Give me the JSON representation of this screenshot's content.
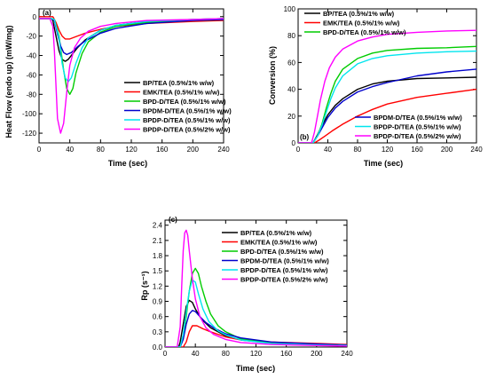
{
  "figure": {
    "panels": [
      {
        "tag": "(a)",
        "xlabel": "Time (sec)",
        "ylabel": "Heat Flow (endo up) (mW/mg)",
        "xlim": [
          0,
          240
        ],
        "ylim": [
          -130,
          8
        ],
        "xticks": [
          "0",
          "40",
          "80",
          "120",
          "160",
          "200",
          "240"
        ],
        "yticks": [
          "0",
          "-20",
          "-40",
          "-60",
          "-80",
          "-100",
          "-120"
        ]
      },
      {
        "tag": "(b)",
        "xlabel": "Time (sec)",
        "ylabel": "Conversion (%)",
        "xlim": [
          0,
          240
        ],
        "ylim": [
          0,
          100
        ],
        "xticks": [
          "0",
          "40",
          "80",
          "120",
          "160",
          "200",
          "240"
        ],
        "yticks": [
          "0",
          "20",
          "40",
          "60",
          "80",
          "100"
        ]
      },
      {
        "tag": "(c)",
        "xlabel": "Time (sec)",
        "ylabel": "Rp (s⁻¹)",
        "xlim": [
          0,
          240
        ],
        "ylim": [
          0,
          2.5
        ],
        "xticks": [
          "0",
          "40",
          "80",
          "120",
          "160",
          "200",
          "240"
        ],
        "yticks": [
          "0.0",
          "0.3",
          "0.6",
          "0.9",
          "1.2",
          "1.5",
          "1.8",
          "2.1",
          "2.4"
        ]
      }
    ]
  },
  "chart_data": [
    {
      "type": "line",
      "panel": "(a)",
      "title": "",
      "xlabel": "Time (sec)",
      "ylabel": "Heat Flow (endo up) (mW/mg)",
      "xlim": [
        0,
        240
      ],
      "ylim": [
        -130,
        8
      ],
      "legend_position": "right-center",
      "series": [
        {
          "name": "BP/TEA (0.5%/1% w/w)",
          "color": "#000000",
          "x": [
            0,
            16,
            18,
            22,
            26,
            30,
            34,
            38,
            44,
            50,
            60,
            80,
            100,
            140,
            200,
            240
          ],
          "y": [
            -2,
            -2,
            -4,
            -20,
            -35,
            -44,
            -46,
            -44,
            -38,
            -32,
            -24,
            -14,
            -9,
            -5,
            -3,
            -2
          ]
        },
        {
          "name": "EMK/TEA (0.5%/1% w/w)",
          "color": "#ff0000",
          "x": [
            0,
            18,
            22,
            26,
            30,
            34,
            40,
            50,
            60,
            80,
            100,
            140,
            200,
            240
          ],
          "y": [
            0,
            0,
            -6,
            -14,
            -20,
            -23,
            -23,
            -20,
            -17,
            -13,
            -10,
            -7,
            -5,
            -4
          ]
        },
        {
          "name": "BPD-D/TEA (0.5%/1% w/w)",
          "color": "#00cc00",
          "x": [
            0,
            16,
            20,
            26,
            32,
            36,
            40,
            44,
            48,
            56,
            64,
            80,
            100,
            140,
            200,
            240
          ],
          "y": [
            -2,
            -2,
            -3,
            -20,
            -55,
            -74,
            -80,
            -74,
            -58,
            -38,
            -26,
            -16,
            -10,
            -6,
            -4,
            -3
          ]
        },
        {
          "name": "BPDM-D/TEA (0.5%/1% w/w)",
          "color": "#0000cc",
          "x": [
            0,
            16,
            20,
            24,
            28,
            32,
            36,
            42,
            50,
            60,
            80,
            100,
            140,
            200,
            240
          ],
          "y": [
            -2,
            -2,
            -4,
            -18,
            -30,
            -37,
            -39,
            -37,
            -31,
            -25,
            -17,
            -12,
            -7,
            -4,
            -3
          ]
        },
        {
          "name": "BPDP-D/TEA (0.5%/1% w/w)",
          "color": "#00e5ee",
          "x": [
            0,
            16,
            20,
            26,
            30,
            34,
            38,
            42,
            48,
            56,
            64,
            80,
            100,
            140,
            200,
            240
          ],
          "y": [
            -2,
            -2,
            -3,
            -22,
            -48,
            -63,
            -67,
            -63,
            -48,
            -32,
            -22,
            -14,
            -9,
            -5,
            -3,
            -2
          ]
        },
        {
          "name": "BPDP-D/TEA (0.5%/2% w/w)",
          "color": "#ff00ff",
          "x": [
            0,
            14,
            18,
            20,
            24,
            28,
            32,
            36,
            40,
            46,
            54,
            64,
            80,
            100,
            140,
            200,
            240
          ],
          "y": [
            -2,
            -2,
            -10,
            -35,
            -105,
            -120,
            -110,
            -78,
            -50,
            -32,
            -22,
            -15,
            -10,
            -7,
            -4,
            -3,
            -2
          ]
        }
      ]
    },
    {
      "type": "line",
      "panel": "(b)",
      "title": "",
      "xlabel": "Time (sec)",
      "ylabel": "Conversion (%)",
      "xlim": [
        0,
        240
      ],
      "ylim": [
        0,
        100
      ],
      "legend_position": "top-left (first three) and bottom-right (last three)",
      "series": [
        {
          "name": "BP/TEA (0.5%/1% w/w)",
          "color": "#000000",
          "x": [
            0,
            20,
            26,
            32,
            40,
            50,
            60,
            80,
            100,
            120,
            160,
            200,
            240
          ],
          "y": [
            0,
            0,
            6,
            13,
            21,
            28,
            33,
            40,
            44,
            46,
            48,
            48.5,
            49
          ]
        },
        {
          "name": "EMK/TEA (0.5%/1% w/w)",
          "color": "#ff0000",
          "x": [
            0,
            22,
            28,
            36,
            46,
            60,
            80,
            100,
            120,
            160,
            200,
            240
          ],
          "y": [
            0,
            0,
            2,
            5,
            9,
            14,
            20,
            25,
            29,
            34,
            37,
            40
          ]
        },
        {
          "name": "BPD-D/TEA (0.5%/1% w/w)",
          "color": "#00cc00",
          "x": [
            0,
            20,
            26,
            32,
            38,
            44,
            50,
            60,
            80,
            100,
            120,
            160,
            200,
            240
          ],
          "y": [
            0,
            0,
            5,
            14,
            26,
            37,
            46,
            55,
            63,
            67,
            69,
            70.5,
            71,
            72
          ]
        },
        {
          "name": "BPDM-D/TEA (0.5%/1% w/w)",
          "color": "#0000cc",
          "x": [
            0,
            20,
            26,
            32,
            40,
            50,
            60,
            80,
            100,
            120,
            160,
            200,
            240
          ],
          "y": [
            0,
            0,
            5,
            11,
            19,
            26,
            31,
            38,
            42,
            45,
            50,
            53,
            55
          ]
        },
        {
          "name": "BPDP-D/TEA (0.5%/1% w/w)",
          "color": "#00e5ee",
          "x": [
            0,
            20,
            26,
            32,
            38,
            44,
            50,
            60,
            80,
            100,
            120,
            160,
            200,
            240
          ],
          "y": [
            0,
            0,
            5,
            13,
            23,
            33,
            41,
            50,
            59,
            63,
            65,
            67,
            68,
            68.5
          ]
        },
        {
          "name": "BPDP-D/TEA (0.5%/2% w/w)",
          "color": "#ff00ff",
          "x": [
            0,
            18,
            22,
            26,
            30,
            36,
            42,
            50,
            60,
            80,
            100,
            120,
            160,
            200,
            240
          ],
          "y": [
            0,
            0,
            8,
            20,
            32,
            46,
            56,
            64,
            70,
            76,
            79,
            81,
            82.5,
            83.5,
            84
          ]
        }
      ]
    },
    {
      "type": "line",
      "panel": "(c)",
      "title": "",
      "xlabel": "Time (sec)",
      "ylabel": "Rp (s⁻¹)",
      "xlim": [
        0,
        240
      ],
      "ylim": [
        0,
        2.5
      ],
      "legend_position": "top-right",
      "series": [
        {
          "name": "BP/TEA (0.5%/1% w/w)",
          "color": "#000000",
          "x": [
            0,
            18,
            20,
            24,
            28,
            32,
            36,
            40,
            48,
            60,
            80,
            100,
            140,
            200,
            240
          ],
          "y": [
            0,
            0,
            0.1,
            0.45,
            0.8,
            0.92,
            0.88,
            0.75,
            0.55,
            0.38,
            0.22,
            0.14,
            0.08,
            0.04,
            0.03
          ]
        },
        {
          "name": "EMK/TEA (0.5%/1% w/w)",
          "color": "#ff0000",
          "x": [
            0,
            24,
            28,
            32,
            36,
            42,
            50,
            60,
            80,
            100,
            140,
            200,
            240
          ],
          "y": [
            0,
            0,
            0.1,
            0.3,
            0.42,
            0.42,
            0.36,
            0.3,
            0.2,
            0.14,
            0.1,
            0.07,
            0.05
          ]
        },
        {
          "name": "BPD-D/TEA (0.5%/1% w/w)",
          "color": "#00cc00",
          "x": [
            0,
            20,
            24,
            28,
            32,
            36,
            40,
            44,
            48,
            54,
            60,
            70,
            80,
            100,
            140,
            200,
            240
          ],
          "y": [
            0,
            0,
            0.2,
            0.6,
            1.1,
            1.45,
            1.55,
            1.45,
            1.2,
            0.9,
            0.65,
            0.42,
            0.3,
            0.16,
            0.08,
            0.04,
            0.03
          ]
        },
        {
          "name": "BPDM-D/TEA (0.5%/1% w/w)",
          "color": "#0000cc",
          "x": [
            0,
            20,
            24,
            28,
            32,
            36,
            40,
            46,
            54,
            64,
            80,
            100,
            140,
            200,
            240
          ],
          "y": [
            0,
            0,
            0.15,
            0.45,
            0.65,
            0.72,
            0.7,
            0.6,
            0.48,
            0.38,
            0.26,
            0.18,
            0.1,
            0.06,
            0.04
          ]
        },
        {
          "name": "BPDP-D/TEA (0.5%/1% w/w)",
          "color": "#00e5ee",
          "x": [
            0,
            20,
            24,
            28,
            32,
            36,
            40,
            44,
            50,
            58,
            70,
            80,
            100,
            140,
            200,
            240
          ],
          "y": [
            0,
            0,
            0.25,
            0.7,
            1.1,
            1.32,
            1.28,
            1.05,
            0.75,
            0.5,
            0.32,
            0.24,
            0.14,
            0.07,
            0.04,
            0.03
          ]
        },
        {
          "name": "BPDP-D/TEA (0.5%/2% w/w)",
          "color": "#ff00ff",
          "x": [
            0,
            16,
            20,
            22,
            24,
            26,
            28,
            30,
            32,
            36,
            40,
            46,
            54,
            64,
            80,
            100,
            140,
            200,
            240
          ],
          "y": [
            0,
            0,
            0.4,
            1.2,
            1.9,
            2.25,
            2.3,
            2.2,
            1.9,
            1.35,
            0.95,
            0.6,
            0.38,
            0.25,
            0.15,
            0.09,
            0.05,
            0.03,
            0.02
          ]
        }
      ]
    }
  ]
}
